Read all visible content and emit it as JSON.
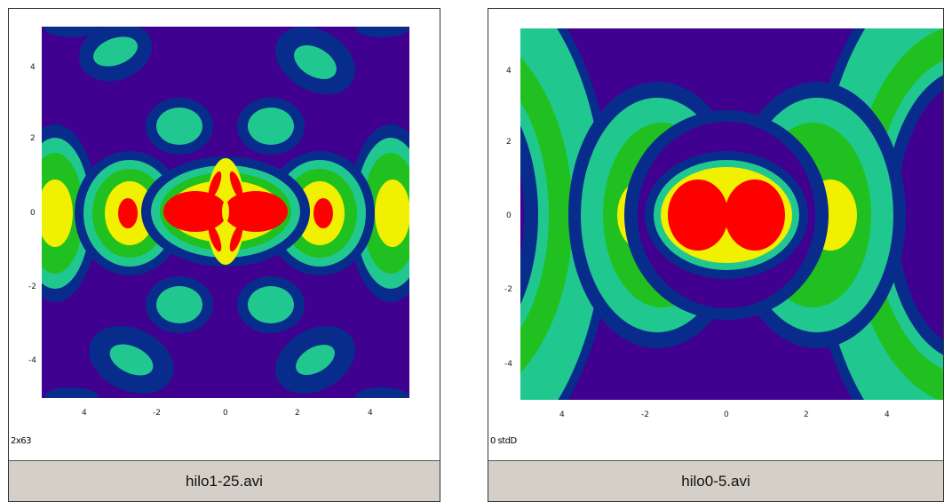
{
  "colors": {
    "background_level": "#400090",
    "level_1": "#082c8c",
    "level_2": "#20c890",
    "level_3": "#20c020",
    "level_4": "#f0f000",
    "level_5": "#ff0000"
  },
  "panels": [
    {
      "caption": "hilo1-25.avi",
      "corner_label": "2x63",
      "x_ticks": [
        "4",
        "-2",
        "0",
        "2",
        "4"
      ],
      "y_ticks": [
        "4",
        "2",
        "0",
        "-2",
        "-4"
      ]
    },
    {
      "caption": "hilo0-5.avi",
      "corner_label": "0 stdD",
      "x_ticks": [
        "4",
        "-2",
        "0",
        "2",
        "4"
      ],
      "y_ticks": [
        "4",
        "2",
        "0",
        "-2",
        "-4"
      ]
    }
  ]
}
